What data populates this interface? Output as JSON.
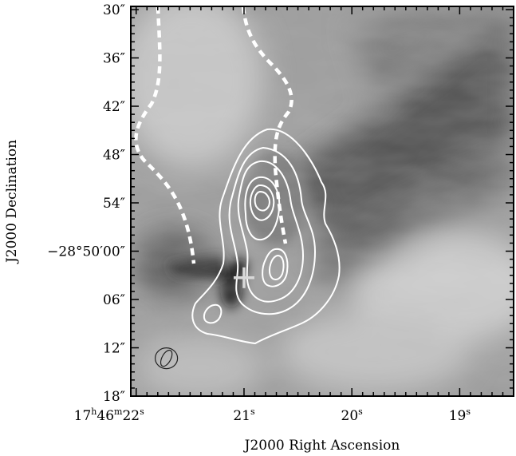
{
  "chart_data": {
    "type": "heatmap",
    "title": "",
    "xlabel": "J2000 Right Ascension",
    "ylabel": "J2000 Declination",
    "colormap": "grayscale",
    "x_ticks": [
      {
        "main": "17",
        "sup1": "h",
        "mid": "46",
        "sup2": "m",
        "tail": "22",
        "sup3": "s",
        "ra_s": 22
      },
      {
        "main": "21",
        "sup": "s",
        "ra_s": 21
      },
      {
        "main": "20",
        "sup": "s",
        "ra_s": 20
      },
      {
        "main": "19",
        "sup": "s",
        "ra_s": 19
      }
    ],
    "y_ticks": [
      {
        "label": "30″",
        "dec_s": -30
      },
      {
        "label": "36″",
        "dec_s": -36
      },
      {
        "label": "42″",
        "dec_s": -42
      },
      {
        "label": "48″",
        "dec_s": -48
      },
      {
        "label": "54″",
        "dec_s": -54
      },
      {
        "label": "−28°50′00″",
        "dec_s": -60
      },
      {
        "label": "06″",
        "dec_s": -66
      },
      {
        "label": "12″",
        "dec_s": -72
      },
      {
        "label": "18″",
        "dec_s": -78
      }
    ],
    "xlim_ra_s": [
      22.05,
      18.5
    ],
    "ylim_dec_s": [
      -29.6,
      -78
    ],
    "marker": {
      "shape": "cross",
      "color": "#d8d8d8",
      "ra_s": 21.0,
      "dec_s": -63.3
    },
    "beam": {
      "ra_s": 21.72,
      "dec_s": -73.3
    },
    "contour_color": "#ffffff",
    "dashed_line_color": "#ffffff"
  }
}
